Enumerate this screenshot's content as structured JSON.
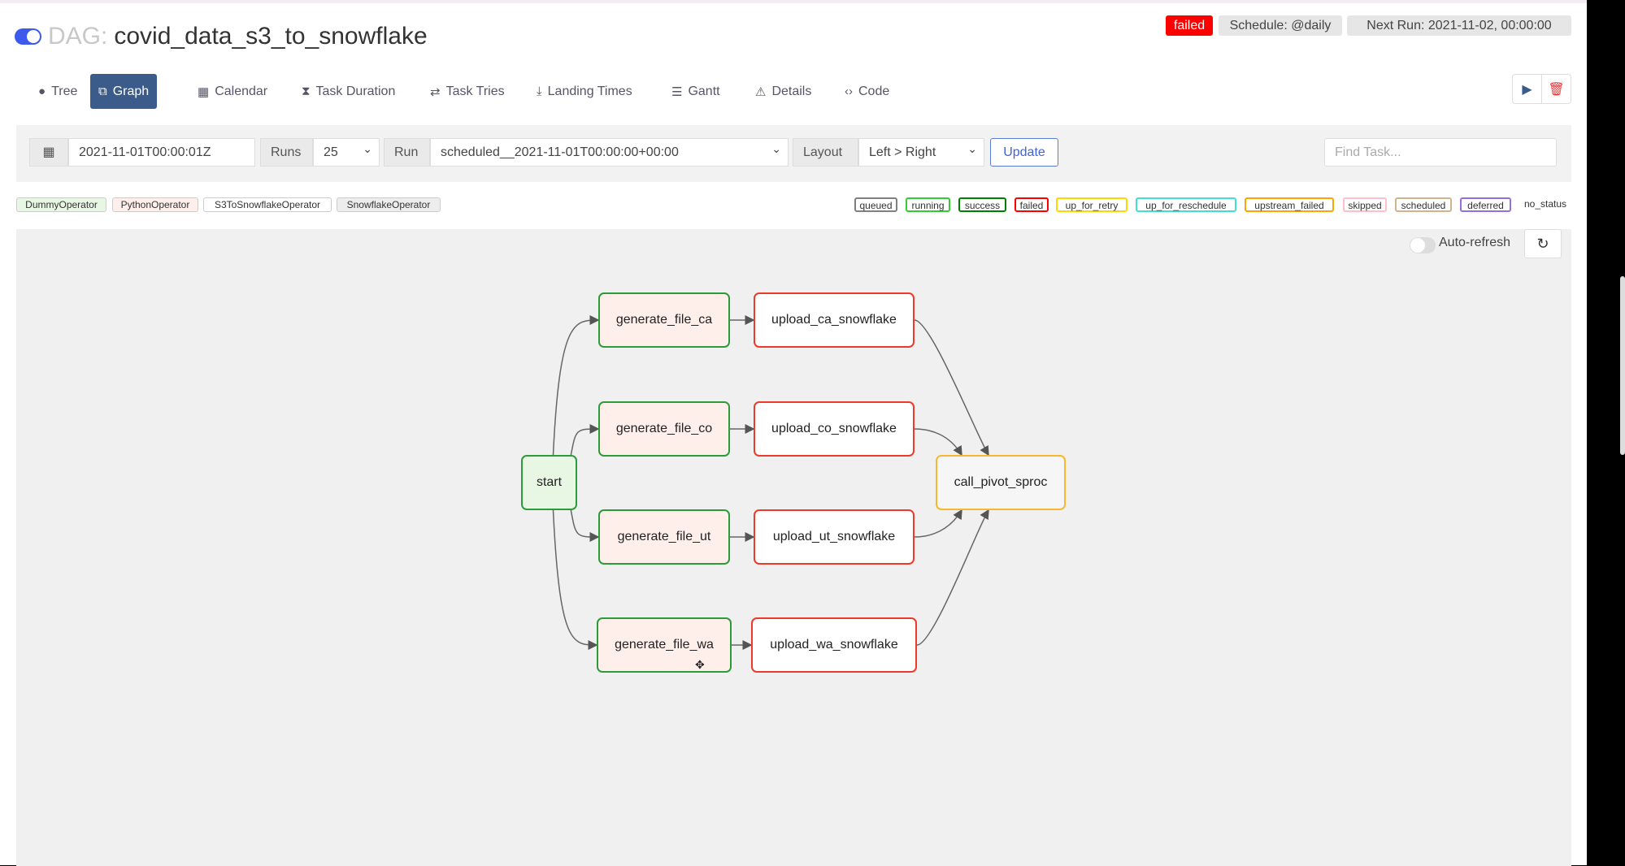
{
  "header": {
    "dag_prefix": "DAG:",
    "dag_name": "covid_data_s3_to_snowflake",
    "paused_toggle_on": true,
    "status_badge": "failed",
    "schedule": "Schedule: @daily",
    "next_run": "Next Run: 2021-11-02, 00:00:00"
  },
  "tabs": [
    {
      "label": "Tree",
      "icon": "tree-icon",
      "glyph": "●"
    },
    {
      "label": "Graph",
      "icon": "graph-icon",
      "glyph": "⧉",
      "active": true
    },
    {
      "label": "Calendar",
      "icon": "calendar-icon",
      "glyph": "▦"
    },
    {
      "label": "Task Duration",
      "icon": "hourglass-icon",
      "glyph": "⧗"
    },
    {
      "label": "Task Tries",
      "icon": "retry-icon",
      "glyph": "⇄"
    },
    {
      "label": "Landing Times",
      "icon": "landing-icon",
      "glyph": "⤓"
    },
    {
      "label": "Gantt",
      "icon": "gantt-icon",
      "glyph": "☰"
    },
    {
      "label": "Details",
      "icon": "warning-triangle-icon",
      "glyph": "⚠"
    },
    {
      "label": "Code",
      "icon": "code-icon",
      "glyph": "‹›"
    }
  ],
  "actions": {
    "trigger_icon": "play-icon",
    "delete_icon": "trash-icon"
  },
  "toolbar": {
    "base_date": "2021-11-01T00:00:01Z",
    "runs_label": "Runs",
    "runs_value": "25",
    "run_label": "Run",
    "run_value": "scheduled__2021-11-01T00:00:00+00:00",
    "layout_label": "Layout",
    "layout_value": "Left > Right",
    "update_label": "Update",
    "find_placeholder": "Find Task..."
  },
  "operators": [
    {
      "name": "DummyOperator",
      "color": "#e8f7e4"
    },
    {
      "name": "PythonOperator",
      "color": "#ffefeb"
    },
    {
      "name": "S3ToSnowflakeOperator",
      "color": "#ffffff"
    },
    {
      "name": "SnowflakeOperator",
      "color": "#ededed"
    }
  ],
  "states": [
    {
      "name": "queued",
      "color": "#808080"
    },
    {
      "name": "running",
      "color": "#32cd32"
    },
    {
      "name": "success",
      "color": "#008000"
    },
    {
      "name": "failed",
      "color": "#ff0000"
    },
    {
      "name": "up_for_retry",
      "color": "#ffd700"
    },
    {
      "name": "up_for_reschedule",
      "color": "#40e0d0"
    },
    {
      "name": "upstream_failed",
      "color": "#ffa500"
    },
    {
      "name": "skipped",
      "color": "#ffc0cb"
    },
    {
      "name": "scheduled",
      "color": "#d2b48c"
    },
    {
      "name": "deferred",
      "color": "#9370db"
    },
    {
      "name": "no_status",
      "color": ""
    }
  ],
  "graph": {
    "auto_refresh_label": "Auto-refresh",
    "auto_refresh_on": false,
    "nodes": [
      {
        "id": "start",
        "operator": "DummyOperator",
        "state": "success"
      },
      {
        "id": "generate_file_ca",
        "operator": "PythonOperator",
        "state": "success"
      },
      {
        "id": "generate_file_co",
        "operator": "PythonOperator",
        "state": "success"
      },
      {
        "id": "generate_file_ut",
        "operator": "PythonOperator",
        "state": "success"
      },
      {
        "id": "generate_file_wa",
        "operator": "PythonOperator",
        "state": "success"
      },
      {
        "id": "upload_ca_snowflake",
        "operator": "S3ToSnowflakeOperator",
        "state": "failed"
      },
      {
        "id": "upload_co_snowflake",
        "operator": "S3ToSnowflakeOperator",
        "state": "failed"
      },
      {
        "id": "upload_ut_snowflake",
        "operator": "S3ToSnowflakeOperator",
        "state": "failed"
      },
      {
        "id": "upload_wa_snowflake",
        "operator": "S3ToSnowflakeOperator",
        "state": "failed"
      },
      {
        "id": "call_pivot_sproc",
        "operator": "SnowflakeOperator",
        "state": "upstream_failed"
      }
    ],
    "edges": [
      [
        "start",
        "generate_file_ca"
      ],
      [
        "start",
        "generate_file_co"
      ],
      [
        "start",
        "generate_file_ut"
      ],
      [
        "start",
        "generate_file_wa"
      ],
      [
        "generate_file_ca",
        "upload_ca_snowflake"
      ],
      [
        "generate_file_co",
        "upload_co_snowflake"
      ],
      [
        "generate_file_ut",
        "upload_ut_snowflake"
      ],
      [
        "generate_file_wa",
        "upload_wa_snowflake"
      ],
      [
        "upload_ca_snowflake",
        "call_pivot_sproc"
      ],
      [
        "upload_co_snowflake",
        "call_pivot_sproc"
      ],
      [
        "upload_ut_snowflake",
        "call_pivot_sproc"
      ],
      [
        "upload_wa_snowflake",
        "call_pivot_sproc"
      ]
    ]
  }
}
